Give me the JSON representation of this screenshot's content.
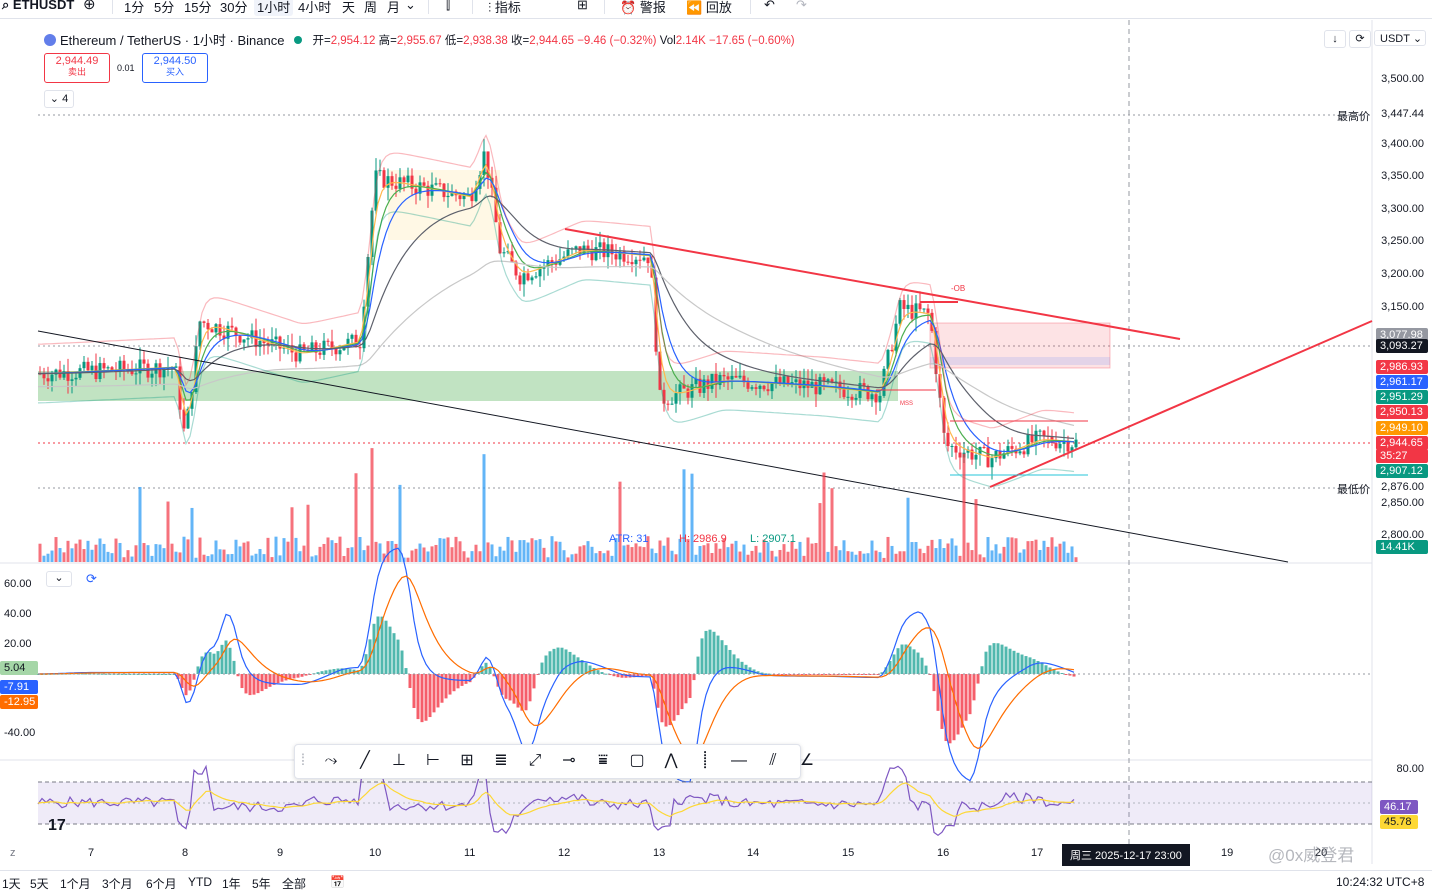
{
  "toolbar": {
    "symbol": "ETHUSDT",
    "intervals": [
      "1分",
      "5分",
      "15分",
      "30分",
      "1小时",
      "4小时",
      "天",
      "周",
      "月"
    ],
    "active_interval": "1小时",
    "indicators_label": "指标",
    "alert_label": "警报",
    "replay_label": "回放"
  },
  "legend": {
    "title": "Ethereum / TetherUS · 1小时 · Binance",
    "open_label": "开=",
    "open": "2,954.12",
    "high_label": "高=",
    "high": "2,955.67",
    "low_label": "低=",
    "low": "2,938.38",
    "close_label": "收=",
    "close": "2,944.65",
    "change": "−9.46 (−0.32%)",
    "vol_label": "Vol",
    "vol": "2.14K",
    "vol_change": "−17.65 (−0.60%)"
  },
  "trade": {
    "sell_price": "2,944.49",
    "sell_label": "卖出",
    "spread": "0.01",
    "buy_price": "2,944.50",
    "buy_label": "买入"
  },
  "indicator_count": "4",
  "currency_button": "USDT",
  "price_axis": [
    "3,500.00",
    "3,400.00",
    "3,350.00",
    "3,300.00",
    "3,250.00",
    "3,200.00",
    "3,150.00",
    "2,850.00",
    "2,800.00"
  ],
  "high_marker": {
    "label": "最高价",
    "value": "3,447.44"
  },
  "low_marker": {
    "label": "最低价",
    "value": "2,876.00"
  },
  "price_tags": [
    {
      "value": "3,077.98",
      "color": "#9598a1"
    },
    {
      "value": "3,093.27",
      "color": "#131722"
    },
    {
      "value": "2,986.93",
      "color": "#f23645"
    },
    {
      "value": "2,961.17",
      "color": "#2962ff"
    },
    {
      "value": "2,951.29",
      "color": "#089981"
    },
    {
      "value": "2,950.13",
      "color": "#f23645"
    },
    {
      "value": "2,949.10",
      "color": "#ff9800"
    },
    {
      "value": "2,944.65",
      "color": "#f23645"
    },
    {
      "value": "35:27",
      "color": "#f23645"
    },
    {
      "value": "2,907.12",
      "color": "#089981"
    }
  ],
  "volume_tag": {
    "value": "14.41K",
    "color": "#089981"
  },
  "atr_label": {
    "atr": "ATR: 31",
    "h": "H: 2986.9",
    "l": "L: 2907.1"
  },
  "chart_annotations": {
    "ob": "-OB",
    "mss": "MSS"
  },
  "macd": {
    "axis": [
      "60.00",
      "40.00",
      "20.00",
      "-40.00"
    ],
    "tags": [
      {
        "value": "5.04",
        "color": "#a5d6a7"
      },
      {
        "value": "-7.91",
        "color": "#2962ff"
      },
      {
        "value": "-12.95",
        "color": "#ff6d00"
      }
    ]
  },
  "rsi": {
    "axis": [
      "80.00"
    ],
    "tags": [
      {
        "value": "46.17",
        "color": "#7e57c2"
      },
      {
        "value": "45.78",
        "color": "#fdd835"
      }
    ]
  },
  "x_axis": [
    "7",
    "8",
    "9",
    "10",
    "11",
    "12",
    "13",
    "14",
    "15",
    "16",
    "17",
    "19",
    "20"
  ],
  "crosshair_date": "周三 2025-12-17  23:00",
  "watermark": "@0x威登君",
  "bottom": {
    "ranges": [
      "1天",
      "5天",
      "1个月",
      "3个月",
      "6个月",
      "YTD",
      "1年",
      "5年",
      "全部"
    ],
    "time": "10:24:32 UTC+8"
  },
  "colors": {
    "up": "#089981",
    "down": "#f23645",
    "accent": "#2962ff"
  }
}
